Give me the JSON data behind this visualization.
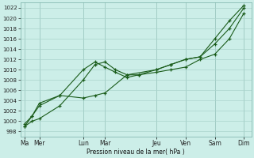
{
  "xlabel": "Pression niveau de la mer( hPa )",
  "bg_color": "#cceee8",
  "grid_color": "#aad4cc",
  "line_color": "#1a5c1a",
  "ylim": [
    997,
    1023
  ],
  "yticks": [
    998,
    1000,
    1002,
    1004,
    1006,
    1008,
    1010,
    1012,
    1014,
    1016,
    1018,
    1020,
    1022
  ],
  "x_labels": [
    "Ma",
    "Mer",
    "Lun",
    "Mar",
    "Jeu",
    "Ven",
    "Sam",
    "Dim"
  ],
  "x_tick_pos": [
    0,
    0.5,
    2.0,
    2.75,
    4.5,
    5.5,
    6.5,
    7.5
  ],
  "xlim": [
    -0.15,
    7.75
  ],
  "line1_x": [
    0,
    0.25,
    0.5,
    1.2,
    2.0,
    2.4,
    2.75,
    3.1,
    3.5,
    3.9,
    4.5,
    5.0,
    5.5,
    6.0,
    6.5,
    7.0,
    7.5
  ],
  "line1_y": [
    999,
    1000,
    1000.5,
    1003,
    1008,
    1011,
    1011.5,
    1010,
    1009,
    1009,
    1009.5,
    1010,
    1010.5,
    1012,
    1013,
    1016,
    1021
  ],
  "line2_x": [
    0,
    0.25,
    0.5,
    1.2,
    2.0,
    2.4,
    2.75,
    3.1,
    3.5,
    3.9,
    4.5,
    5.0,
    5.5,
    6.0,
    6.5,
    7.0,
    7.5
  ],
  "line2_y": [
    999.5,
    1001,
    1003,
    1005,
    1010,
    1011.5,
    1010.5,
    1009.5,
    1008.5,
    1009,
    1010,
    1011,
    1012,
    1012.5,
    1015,
    1018,
    1022
  ],
  "line3_x": [
    0,
    0.25,
    0.5,
    1.2,
    2.0,
    2.4,
    2.75,
    3.5,
    4.5,
    5.0,
    5.5,
    6.0,
    6.5,
    7.0,
    7.5
  ],
  "line3_y": [
    999,
    1001,
    1003.5,
    1005,
    1004.5,
    1005,
    1005.5,
    1009,
    1010,
    1011,
    1012,
    1012.5,
    1016,
    1019.5,
    1022.5
  ]
}
